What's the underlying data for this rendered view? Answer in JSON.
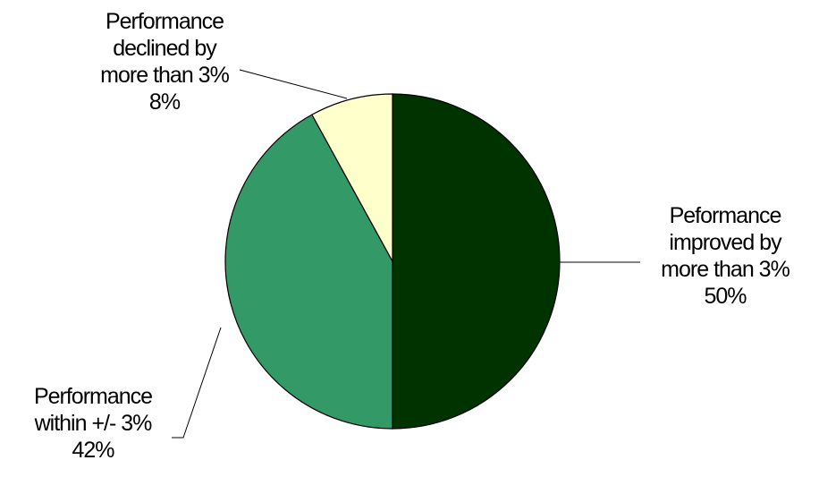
{
  "chart_data": {
    "type": "pie",
    "title": "",
    "slices": [
      {
        "label_lines": [
          "Peformance",
          "improved by",
          "more than 3%"
        ],
        "value": 50,
        "value_label": "50%",
        "color": "#003300"
      },
      {
        "label_lines": [
          "Performance",
          "within +/- 3%"
        ],
        "value": 42,
        "value_label": "42%",
        "color": "#339966"
      },
      {
        "label_lines": [
          "Performance",
          "declined by",
          "more than 3%"
        ],
        "value": 8,
        "value_label": "8%",
        "color": "#ffffcc"
      }
    ],
    "start_angle": "12 o'clock",
    "direction": "clockwise",
    "legend": "none"
  }
}
